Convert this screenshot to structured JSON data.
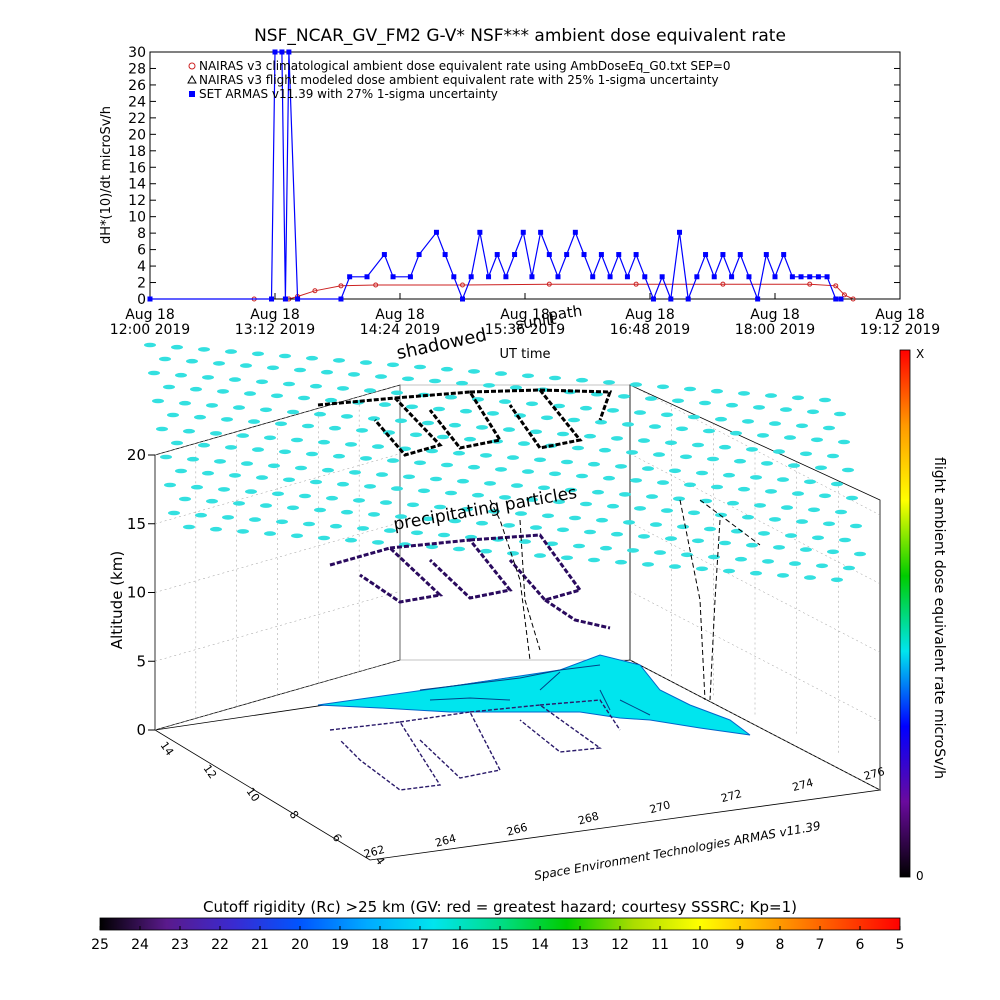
{
  "chart_data": [
    {
      "type": "line",
      "title": "NSF_NCAR_GV_FM2 G-V* NSF*** ambient dose equivalent rate",
      "xlabel": "UT time",
      "ylabel": "dH*(10)/dt microSv/h",
      "ylim": [
        0,
        30
      ],
      "yticks": [
        0,
        2,
        4,
        6,
        8,
        10,
        12,
        14,
        16,
        18,
        20,
        22,
        24,
        26,
        28,
        30
      ],
      "xlim_minutes": [
        720,
        1152
      ],
      "x_ticks": [
        {
          "minute": 720,
          "line1": "Aug 18",
          "line2": "12:00 2019"
        },
        {
          "minute": 792,
          "line1": "Aug 18",
          "line2": "13:12 2019"
        },
        {
          "minute": 864,
          "line1": "Aug 18",
          "line2": "14:24 2019"
        },
        {
          "minute": 936,
          "line1": "Aug 18",
          "line2": "15:36 2019"
        },
        {
          "minute": 1008,
          "line1": "Aug 18",
          "line2": "16:48 2019"
        },
        {
          "minute": 1080,
          "line1": "Aug 18",
          "line2": "18:00 2019"
        },
        {
          "minute": 1152,
          "line1": "Aug 18",
          "line2": "19:12 2019"
        }
      ],
      "legend_position": "top-left",
      "overlay_labels": [
        "shadowed",
        "sunlit",
        "path"
      ],
      "series": [
        {
          "name": "NAIRAS v3 climatological ambient dose equivalent rate using AmbDoseEq_G0.txt SEP=0",
          "color": "#cc2222",
          "marker": "diamond",
          "x": [
            720,
            780,
            800,
            805,
            815,
            830,
            850,
            900,
            950,
            1000,
            1050,
            1100,
            1115,
            1120,
            1125
          ],
          "values": [
            0,
            0,
            0,
            0.3,
            1.0,
            1.6,
            1.7,
            1.7,
            1.8,
            1.8,
            1.8,
            1.8,
            1.6,
            0.5,
            0
          ]
        },
        {
          "name": "NAIRAS v3 flight modeled dose ambient equivalent rate with 25% 1-sigma uncertainty",
          "color": "#000000",
          "marker": "triangle",
          "x": [
            720,
            1125
          ],
          "values": [
            0,
            0
          ]
        },
        {
          "name": "SET ARMAS v11.39 with 27% 1-sigma uncertainty",
          "color": "#0000ff",
          "marker": "square",
          "x": [
            720,
            790,
            792,
            796,
            798,
            800,
            805,
            830,
            835,
            845,
            855,
            860,
            870,
            875,
            885,
            890,
            895,
            900,
            905,
            910,
            915,
            920,
            925,
            930,
            935,
            940,
            945,
            950,
            955,
            960,
            965,
            970,
            975,
            980,
            985,
            990,
            995,
            1000,
            1005,
            1010,
            1015,
            1020,
            1025,
            1030,
            1035,
            1040,
            1045,
            1050,
            1055,
            1060,
            1065,
            1070,
            1075,
            1080,
            1085,
            1090,
            1095,
            1100,
            1105,
            1110,
            1115,
            1118
          ],
          "values": [
            0,
            0,
            30,
            30,
            0,
            30,
            0,
            0,
            2.7,
            2.7,
            5.4,
            2.7,
            2.7,
            5.4,
            8.1,
            5.4,
            2.7,
            0,
            2.7,
            8.1,
            2.7,
            5.4,
            2.7,
            5.4,
            8.1,
            2.7,
            8.1,
            5.4,
            2.7,
            5.4,
            8.1,
            5.4,
            2.7,
            5.4,
            2.7,
            5.4,
            2.7,
            5.4,
            2.7,
            0,
            2.7,
            0,
            8.1,
            0,
            2.7,
            5.4,
            2.7,
            5.4,
            2.7,
            5.4,
            2.7,
            0,
            5.4,
            2.7,
            5.4,
            2.7,
            2.7,
            2.7,
            2.7,
            2.7,
            0,
            0
          ]
        }
      ]
    },
    {
      "type": "scatter",
      "subtype": "3d-flight-track",
      "zlabel": "Altitude (km)",
      "zlim": [
        0,
        20
      ],
      "zticks": [
        0,
        5,
        10,
        15,
        20
      ],
      "x_axis_ticks": [
        "262",
        "264",
        "266",
        "268",
        "270",
        "272",
        "274",
        "276"
      ],
      "y_axis_ticks": [
        "4",
        "6",
        "8",
        "10",
        "12",
        "14"
      ],
      "annotations": [
        "precipitating particles"
      ],
      "credit": "Space Environment Technologies ARMAS v11.39",
      "surface_color": "#00e5ee",
      "particle_color": "#33e0e0",
      "track_color": "#000000",
      "colorbar": {
        "label": "flight ambient dose equivalent rate microSv/h",
        "top_label": "X",
        "bottom_label": "0",
        "colors": [
          "#000000",
          "#6a0a9e",
          "#0000ff",
          "#00e5ee",
          "#00cc00",
          "#ffff00",
          "#ff9900",
          "#ff0000"
        ]
      }
    },
    {
      "type": "heatmap",
      "subtype": "colorbar",
      "title": "Cutoff rigidity (Rc) >25 km (GV: red = greatest hazard; courtesy SSSRC; Kp=1)",
      "tick_labels": [
        "25",
        "24",
        "23",
        "22",
        "21",
        "20",
        "19",
        "18",
        "17",
        "16",
        "15",
        "14",
        "13",
        "12",
        "11",
        "10",
        "9",
        "8",
        "7",
        "6",
        "5"
      ],
      "colors": [
        "#000000",
        "#5a1a8c",
        "#3a2ad0",
        "#0055ff",
        "#00aaff",
        "#00e5ee",
        "#00dd88",
        "#00cc00",
        "#aadd00",
        "#ffff00",
        "#ffaa00",
        "#ff5500",
        "#ff0000"
      ]
    }
  ]
}
